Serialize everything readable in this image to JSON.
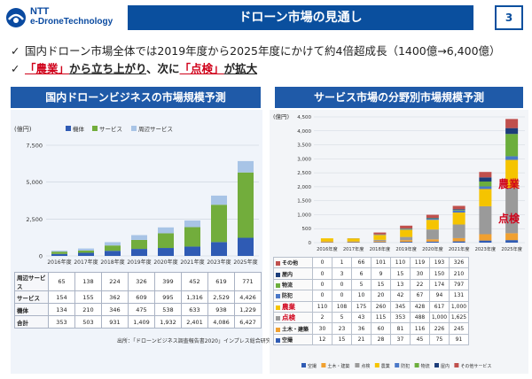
{
  "logo": {
    "line1": "NTT",
    "line2": "e-DroneTechnology"
  },
  "title": "ドローン市場の見通し",
  "page_number": "3",
  "bullets": {
    "b1": "国内ドローン市場全体では2019年度から2025年度にかけて約4倍超成長（1400億→6,400億）",
    "b2_part1": "「農業」",
    "b2_part2": "から立ち上がり",
    "b2_part3": "、次に",
    "b2_part4": "「点検」",
    "b2_part5": "が拡大"
  },
  "left_section_title": "国内ドローンビジネスの市場規模予測",
  "right_section_title": "サービス市場の分野別市場規模予測",
  "colors": {
    "navy": "#0a4f9e",
    "bar_blue": "#2f5bb4",
    "bar_green": "#72ad3c",
    "bar_lightblue": "#a8c4e6",
    "red": "#d0021b"
  },
  "left_chart": {
    "unit_label": "(億円)",
    "legend": [
      "機体",
      "サービス",
      "周辺サービス"
    ],
    "y_ticks": [
      "7,500",
      "5,000",
      "2,500",
      "0"
    ],
    "table_rows": [
      {
        "label": "周辺サービス",
        "values": [
          "65",
          "138",
          "224",
          "326",
          "399",
          "452",
          "619",
          "771"
        ]
      },
      {
        "label": "サービス",
        "values": [
          "154",
          "155",
          "362",
          "609",
          "995",
          "1,316",
          "2,529",
          "4,426"
        ]
      },
      {
        "label": "機体",
        "values": [
          "134",
          "210",
          "346",
          "475",
          "538",
          "633",
          "938",
          "1,229"
        ]
      },
      {
        "label": "合計",
        "values": [
          "353",
          "503",
          "931",
          "1,409",
          "1,932",
          "2,401",
          "4,086",
          "6,427"
        ]
      }
    ],
    "source": "出所：「ドローンビジネス調査報告書2020」インプレス総合研究所"
  },
  "right_chart": {
    "unit_label": "(億円)",
    "y_ticks": [
      "4,500",
      "4,000",
      "3,500",
      "3,000",
      "2,500",
      "2,000",
      "1,500",
      "1,000",
      "500",
      "0"
    ],
    "annotations": {
      "agri": "農業",
      "inspect": "点検"
    },
    "table_rows": [
      {
        "label": "その他",
        "values": [
          "0",
          "1",
          "66",
          "101",
          "110",
          "119",
          "193",
          "326"
        ]
      },
      {
        "label": "屋内",
        "values": [
          "0",
          "3",
          "6",
          "9",
          "15",
          "30",
          "150",
          "210"
        ]
      },
      {
        "label": "物流",
        "values": [
          "0",
          "0",
          "5",
          "15",
          "13",
          "22",
          "174",
          "797"
        ]
      },
      {
        "label": "防犯",
        "values": [
          "0",
          "0",
          "10",
          "20",
          "42",
          "67",
          "94",
          "131"
        ]
      },
      {
        "label": "農業",
        "values": [
          "110",
          "108",
          "175",
          "260",
          "345",
          "428",
          "617",
          "1,000"
        ]
      },
      {
        "label": "点検",
        "values": [
          "2",
          "5",
          "43",
          "115",
          "353",
          "488",
          "1,000",
          "1,625"
        ]
      },
      {
        "label": "土木・建築",
        "values": [
          "30",
          "23",
          "36",
          "60",
          "81",
          "116",
          "226",
          "245"
        ]
      },
      {
        "label": "空撮",
        "values": [
          "12",
          "15",
          "21",
          "28",
          "37",
          "45",
          "75",
          "91"
        ]
      }
    ],
    "legend": [
      "空撮",
      "土木・建築",
      "点検",
      "農業",
      "防犯",
      "物流",
      "屋内",
      "その他サービス"
    ]
  },
  "chart_data": [
    {
      "type": "bar",
      "ylabel": "(億円)",
      "categories": [
        "2016年度",
        "2017年度",
        "2018年度",
        "2019年度",
        "2020年度",
        "2021年度",
        "2023年度",
        "2025年度"
      ],
      "series": [
        {
          "name": "機体",
          "values": [
            134,
            210,
            346,
            475,
            538,
            633,
            938,
            1229
          ]
        },
        {
          "name": "サービス",
          "values": [
            154,
            155,
            362,
            609,
            995,
            1316,
            2529,
            4426
          ]
        },
        {
          "name": "周辺サービス",
          "values": [
            65,
            138,
            224,
            326,
            399,
            452,
            619,
            771
          ]
        }
      ],
      "ylim": [
        0,
        7500
      ]
    },
    {
      "type": "bar",
      "ylabel": "(億円)",
      "categories": [
        "2016年度",
        "2017年度",
        "2018年度",
        "2019年度",
        "2020年度",
        "2021年度",
        "2023年度",
        "2025年度"
      ],
      "series": [
        {
          "name": "空撮",
          "values": [
            12,
            15,
            21,
            28,
            37,
            45,
            75,
            91
          ]
        },
        {
          "name": "土木・建築",
          "values": [
            30,
            23,
            36,
            60,
            81,
            116,
            226,
            245
          ]
        },
        {
          "name": "点検",
          "values": [
            2,
            5,
            43,
            115,
            353,
            488,
            1000,
            1625
          ]
        },
        {
          "name": "農業",
          "values": [
            110,
            108,
            175,
            260,
            345,
            428,
            617,
            1000
          ]
        },
        {
          "name": "防犯",
          "values": [
            0,
            0,
            10,
            20,
            42,
            67,
            94,
            131
          ]
        },
        {
          "name": "物流",
          "values": [
            0,
            0,
            5,
            15,
            13,
            22,
            174,
            797
          ]
        },
        {
          "name": "屋内",
          "values": [
            0,
            3,
            6,
            9,
            15,
            30,
            150,
            210
          ]
        },
        {
          "name": "その他サービス",
          "values": [
            0,
            1,
            66,
            101,
            110,
            119,
            193,
            326
          ]
        }
      ],
      "ylim": [
        0,
        4500
      ]
    }
  ]
}
